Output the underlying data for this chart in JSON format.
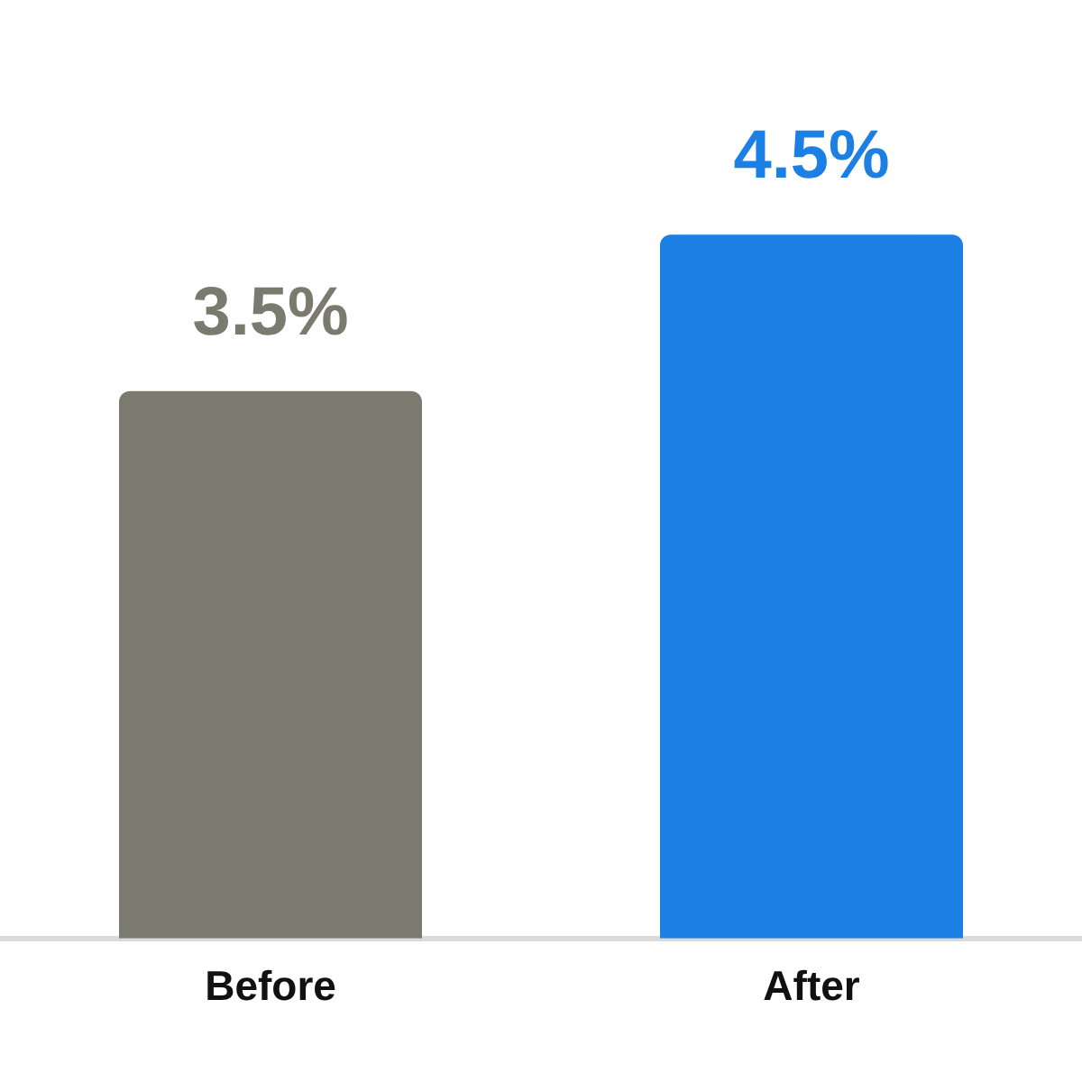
{
  "chart_data": {
    "type": "bar",
    "categories": [
      "Before",
      "After"
    ],
    "values": [
      3.5,
      4.5
    ],
    "colors": [
      "#7a7b6e",
      "#1b7fe3"
    ],
    "value_labels": [
      "3.5%",
      "4.5%"
    ],
    "tick_labels": "x",
    "grid": false,
    "legend": false
  }
}
